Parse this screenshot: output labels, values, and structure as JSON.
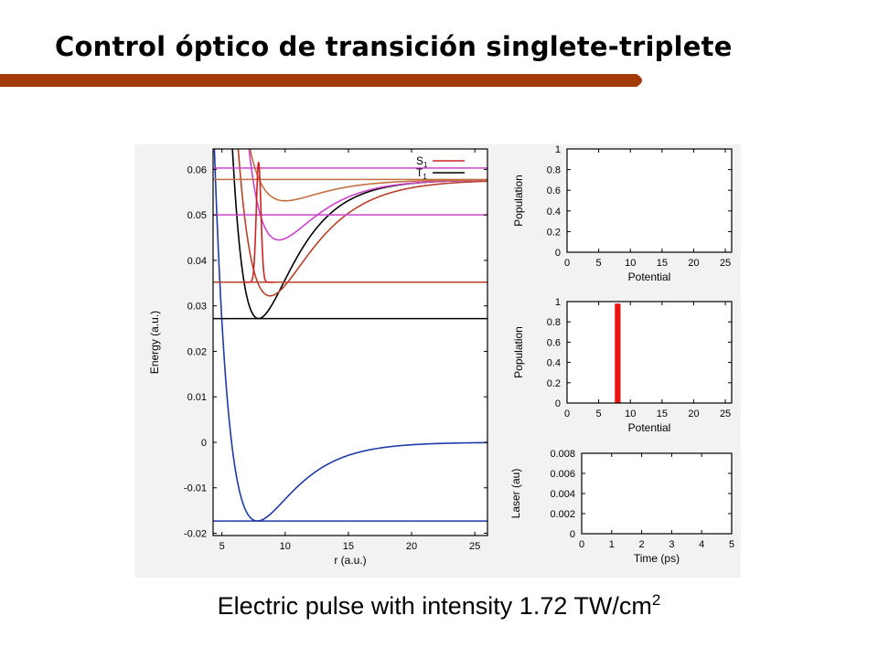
{
  "slide": {
    "title": "Control óptico de transición singlete-triplete",
    "caption_main": "Electric pulse with intensity 1.72 TW/cm",
    "caption_sup": "2",
    "accent_color": "#a33a0a"
  },
  "chart_data": [
    {
      "type": "line",
      "xlabel": "r (a.u.)",
      "ylabel": "Energy (a.u.)",
      "xlim": [
        4.3,
        26
      ],
      "ylim": [
        -0.0205,
        0.0645
      ],
      "xticks": [
        5,
        10,
        15,
        20,
        25
      ],
      "yticks": [
        -0.02,
        -0.01,
        0,
        0.01,
        0.02,
        0.03,
        0.04,
        0.05,
        0.06
      ],
      "ytick_labels": [
        "-0.02",
        "-0.01",
        "0",
        "0.01",
        "0.02",
        "0.03",
        "0.04",
        "0.05",
        "0.06"
      ],
      "legend": {
        "position": "top-right",
        "entries": [
          {
            "label": "S1",
            "color": "#cc2222"
          },
          {
            "label": "T1",
            "color": "#000000"
          }
        ]
      },
      "series": [
        {
          "color": "#1f3aa6",
          "kind": "morse",
          "De": 0.0173,
          "re": 7.8,
          "a": 0.34,
          "asym": 0.0
        },
        {
          "color": "#1f3aa6",
          "kind": "hline",
          "y": -0.0173
        },
        {
          "color": "#000000",
          "kind": "morse",
          "De": 0.0305,
          "re": 7.9,
          "a": 0.36,
          "asym": 0.0577
        },
        {
          "color": "#000000",
          "kind": "hline",
          "y": 0.0272
        },
        {
          "color": "#b8402a",
          "kind": "morse",
          "De": 0.0255,
          "re": 8.8,
          "a": 0.3,
          "asym": 0.0577
        },
        {
          "color": "#b8402a",
          "kind": "hline",
          "y": 0.0352
        },
        {
          "color": "#cc44cc",
          "kind": "morse",
          "De": 0.0132,
          "re": 9.5,
          "a": 0.34,
          "asym": 0.0577
        },
        {
          "color": "#cc44cc",
          "kind": "hline",
          "y": 0.05
        },
        {
          "color": "#cc44cc",
          "kind": "hline",
          "y": 0.0603
        },
        {
          "color": "#c07040",
          "kind": "morse",
          "De": 0.0046,
          "re": 10.0,
          "a": 0.34,
          "asym": 0.0577
        },
        {
          "color": "#c07040",
          "kind": "hline",
          "y": 0.0578
        },
        {
          "color": "#cc2222",
          "kind": "spike",
          "x0": 7.9,
          "y0": 0.0352,
          "y1": 0.0615,
          "w": 0.45
        }
      ]
    },
    {
      "type": "bar",
      "xlabel": "Potential",
      "ylabel": "Population",
      "xlim": [
        0,
        26
      ],
      "ylim": [
        0,
        1
      ],
      "xticks": [
        0,
        5,
        10,
        15,
        20,
        25
      ],
      "yticks": [
        0,
        0.2,
        0.4,
        0.6,
        0.8,
        1
      ],
      "ytick_labels": [
        "0",
        "0.2",
        "0.4",
        "0.6",
        "0.8",
        "1"
      ],
      "bars": []
    },
    {
      "type": "bar",
      "xlabel": "Potential",
      "ylabel": "Population",
      "xlim": [
        0,
        26
      ],
      "ylim": [
        0,
        1
      ],
      "xticks": [
        0,
        5,
        10,
        15,
        20,
        25
      ],
      "yticks": [
        0,
        0.2,
        0.4,
        0.6,
        0.8,
        1
      ],
      "ytick_labels": [
        "0",
        "0.2",
        "0.4",
        "0.6",
        "0.8",
        "1"
      ],
      "bars": [
        {
          "x": 8,
          "value": 0.98,
          "width": 0.9,
          "color": "#ee1111"
        }
      ]
    },
    {
      "type": "line",
      "xlabel": "Time (ps)",
      "ylabel": "Laser (au)",
      "xlim": [
        0,
        5
      ],
      "ylim": [
        0,
        0.008
      ],
      "xticks": [
        0,
        1,
        2,
        3,
        4,
        5
      ],
      "yticks": [
        0,
        0.002,
        0.004,
        0.006,
        0.008
      ],
      "ytick_labels": [
        "0",
        "0.002",
        "0.004",
        "0.006",
        "0.008"
      ],
      "series": []
    }
  ]
}
